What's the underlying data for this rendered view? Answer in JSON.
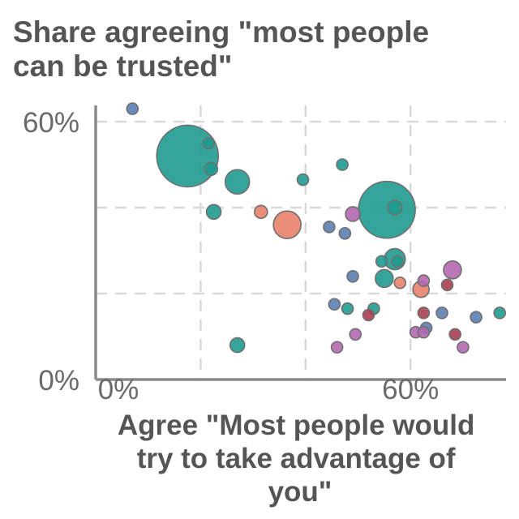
{
  "chart_data": {
    "type": "scatter",
    "title": "Share agreeing \"most people can be trusted\"",
    "xlabel": "Agree \"Most people would try to take advantage of you\"",
    "ylabel": "",
    "xlim": [
      0,
      75
    ],
    "ylim": [
      0,
      60
    ],
    "x_ticks": [
      {
        "value": 0,
        "label": "0%"
      },
      {
        "value": 60,
        "label": "60%"
      }
    ],
    "y_ticks": [
      {
        "value": 0,
        "label": "0%"
      },
      {
        "value": 60,
        "label": "60%"
      }
    ],
    "grid": true,
    "colors": {
      "teal": "#1f9a8f",
      "blue": "#5b7fb2",
      "salmon": "#e8826c",
      "purple": "#b468b0",
      "maroon": "#a83f52"
    },
    "points": [
      {
        "x": 7,
        "y": 63,
        "size": 7,
        "color": "blue"
      },
      {
        "x": 17.5,
        "y": 52,
        "size": 38,
        "color": "teal"
      },
      {
        "x": 21.5,
        "y": 55,
        "size": 7,
        "color": "teal"
      },
      {
        "x": 22,
        "y": 49,
        "size": 8,
        "color": "teal"
      },
      {
        "x": 27,
        "y": 46,
        "size": 15,
        "color": "teal"
      },
      {
        "x": 22.5,
        "y": 39,
        "size": 9,
        "color": "teal"
      },
      {
        "x": 31.5,
        "y": 39,
        "size": 8,
        "color": "salmon"
      },
      {
        "x": 36.5,
        "y": 36,
        "size": 17,
        "color": "salmon"
      },
      {
        "x": 39.5,
        "y": 46.5,
        "size": 7,
        "color": "teal"
      },
      {
        "x": 47,
        "y": 50,
        "size": 7,
        "color": "teal"
      },
      {
        "x": 44.5,
        "y": 35.5,
        "size": 7,
        "color": "blue"
      },
      {
        "x": 47.5,
        "y": 34,
        "size": 7,
        "color": "blue"
      },
      {
        "x": 49,
        "y": 38.5,
        "size": 9,
        "color": "purple"
      },
      {
        "x": 55.5,
        "y": 39.5,
        "size": 35,
        "color": "teal"
      },
      {
        "x": 57,
        "y": 40,
        "size": 9,
        "color": "teal"
      },
      {
        "x": 57,
        "y": 28,
        "size": 13,
        "color": "teal"
      },
      {
        "x": 57.5,
        "y": 27.5,
        "size": 7,
        "color": "teal"
      },
      {
        "x": 54.5,
        "y": 27.5,
        "size": 7,
        "color": "teal"
      },
      {
        "x": 55,
        "y": 23.5,
        "size": 11,
        "color": "teal"
      },
      {
        "x": 49,
        "y": 24,
        "size": 7,
        "color": "blue"
      },
      {
        "x": 58,
        "y": 22.5,
        "size": 7,
        "color": "salmon"
      },
      {
        "x": 62,
        "y": 21,
        "size": 10,
        "color": "salmon"
      },
      {
        "x": 62.5,
        "y": 23,
        "size": 7,
        "color": "purple"
      },
      {
        "x": 67,
        "y": 22,
        "size": 7,
        "color": "maroon"
      },
      {
        "x": 68,
        "y": 25.5,
        "size": 11,
        "color": "purple"
      },
      {
        "x": 45.5,
        "y": 17.5,
        "size": 7,
        "color": "blue"
      },
      {
        "x": 48,
        "y": 16.5,
        "size": 7,
        "color": "teal"
      },
      {
        "x": 53,
        "y": 16.5,
        "size": 7,
        "color": "teal"
      },
      {
        "x": 52,
        "y": 15,
        "size": 7,
        "color": "maroon"
      },
      {
        "x": 62.5,
        "y": 15.5,
        "size": 7,
        "color": "maroon"
      },
      {
        "x": 66,
        "y": 15.5,
        "size": 7,
        "color": "blue"
      },
      {
        "x": 63,
        "y": 12,
        "size": 7,
        "color": "blue"
      },
      {
        "x": 61,
        "y": 11,
        "size": 7,
        "color": "purple"
      },
      {
        "x": 62.5,
        "y": 11,
        "size": 7,
        "color": "purple"
      },
      {
        "x": 68.5,
        "y": 10.5,
        "size": 7,
        "color": "maroon"
      },
      {
        "x": 72.5,
        "y": 14.5,
        "size": 7,
        "color": "blue"
      },
      {
        "x": 77,
        "y": 15.5,
        "size": 7,
        "color": "teal"
      },
      {
        "x": 49.5,
        "y": 10.5,
        "size": 7,
        "color": "purple"
      },
      {
        "x": 27,
        "y": 8,
        "size": 9,
        "color": "teal"
      },
      {
        "x": 46,
        "y": 7.5,
        "size": 7,
        "color": "purple"
      },
      {
        "x": 70,
        "y": 7.5,
        "size": 7,
        "color": "purple"
      }
    ]
  }
}
